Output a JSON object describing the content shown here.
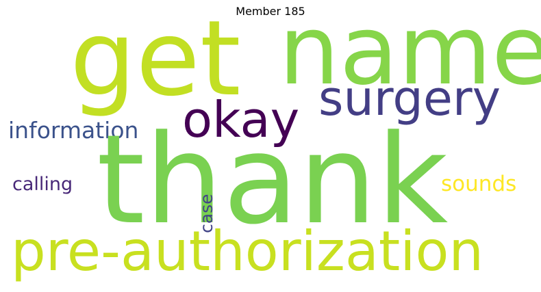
{
  "title": "Member 185",
  "words": [
    {
      "text": "get",
      "color": "#c2df23"
    },
    {
      "text": "name",
      "color": "#86d549"
    },
    {
      "text": "surgery",
      "color": "#433e85"
    },
    {
      "text": "okay",
      "color": "#440154"
    },
    {
      "text": "information",
      "color": "#3b528b"
    },
    {
      "text": "thank",
      "color": "#7ad151"
    },
    {
      "text": "calling",
      "color": "#482878"
    },
    {
      "text": "sounds",
      "color": "#fde725"
    },
    {
      "text": "case",
      "color": "#414487"
    },
    {
      "text": "pre-authorization",
      "color": "#c8e020"
    }
  ]
}
